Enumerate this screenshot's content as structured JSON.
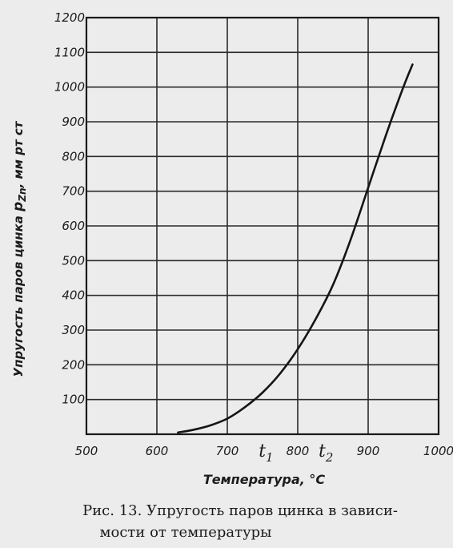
{
  "chart_data": {
    "type": "line",
    "ylabel_parts": [
      "Упругость паров цинка ",
      "p",
      "Zn",
      ", мм рт ст"
    ],
    "xlabel": "Температура, °C",
    "xlim": [
      500,
      1000
    ],
    "ylim": [
      0,
      1200
    ],
    "x_ticks": [
      "500",
      "600",
      "700",
      "800",
      "900",
      "1000"
    ],
    "y_ticks": [
      "100",
      "200",
      "300",
      "400",
      "500",
      "600",
      "700",
      "800",
      "900",
      "1000",
      "1100",
      "1200"
    ],
    "grid": true,
    "markers": [
      {
        "label": "t",
        "sub": "1",
        "x": 755
      },
      {
        "label": "t",
        "sub": "2",
        "x": 840
      }
    ],
    "series": [
      {
        "x": [
          630,
          650,
          675,
          700,
          725,
          750,
          775,
          800,
          825,
          850,
          875,
          900,
          925,
          950,
          963
        ],
        "y": [
          5,
          12,
          25,
          45,
          78,
          120,
          175,
          245,
          330,
          430,
          560,
          710,
          860,
          1000,
          1065
        ]
      }
    ]
  },
  "caption": {
    "line1": "Рис. 13. Упругость паров цинка в зависи-",
    "line2": "мости от температуры"
  }
}
